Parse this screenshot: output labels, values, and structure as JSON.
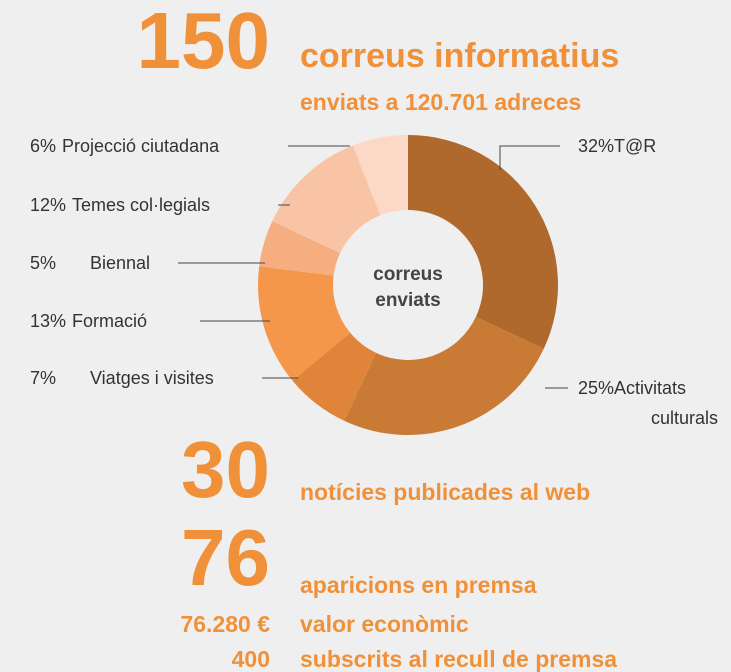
{
  "stats": [
    {
      "number": "150",
      "text": "correus informatius"
    },
    {
      "text": "enviats a 120.701 adreces"
    },
    {
      "number": "30",
      "text": "notícies publicades al web"
    },
    {
      "number": "76",
      "text": "aparicions en premsa"
    },
    {
      "number": "76.280 €",
      "text": "valor econòmic"
    },
    {
      "number": "400",
      "text": "subscrits al recull de premsa"
    }
  ],
  "chart_data": {
    "type": "pie",
    "center_label": [
      "correus",
      "enviats"
    ],
    "categories": [
      "T@R",
      "Activitats culturals",
      "Viatges i visites",
      "Formació",
      "Biennal",
      "Temes col·legials",
      "Projecció ciutadana"
    ],
    "values": [
      32,
      25,
      7,
      13,
      5,
      12,
      6
    ],
    "value_labels": [
      "32%",
      "25%",
      "7%",
      "13%",
      "5%",
      "12%",
      "6%"
    ],
    "colors": [
      "#b0692c",
      "#c97a35",
      "#e0843a",
      "#f5974a",
      "#f6ae80",
      "#f9c4a6",
      "#fbd9c6"
    ]
  }
}
